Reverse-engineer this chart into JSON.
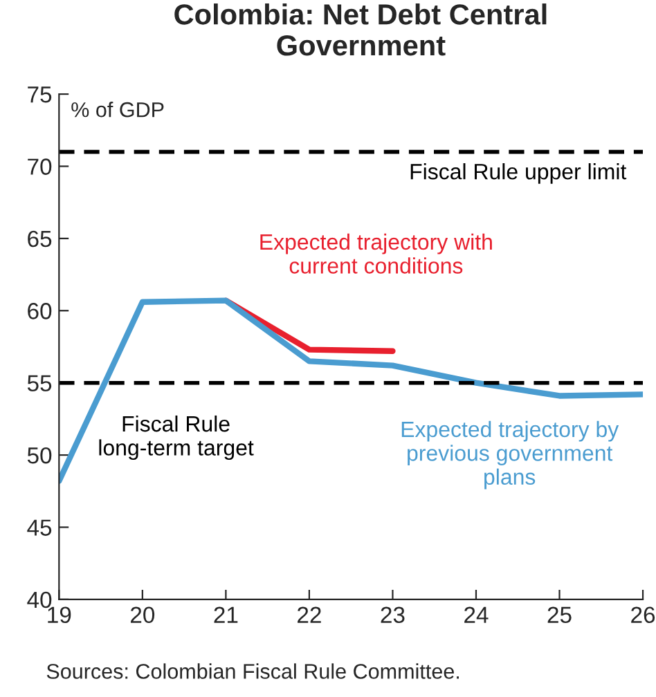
{
  "chart_data": {
    "type": "line",
    "title": "Colombia: Net Debt Central Government",
    "ylabel": "% of GDP",
    "x": [
      19,
      20,
      21,
      22,
      23,
      24,
      25,
      26
    ],
    "series": [
      {
        "name": "Expected trajectory with current conditions",
        "color": "#e8202e",
        "values": [
          null,
          null,
          60.7,
          57.3,
          57.2,
          null,
          null,
          null
        ]
      },
      {
        "name": "Expected trajectory by previous government plans",
        "color": "#4a9cd0",
        "values": [
          48.2,
          60.6,
          60.7,
          56.5,
          56.2,
          55.0,
          54.1,
          54.2
        ]
      }
    ],
    "xlim": [
      19,
      26
    ],
    "xticks": [
      19,
      20,
      21,
      22,
      23,
      24,
      25,
      26
    ],
    "ylim": [
      40,
      75
    ],
    "yticks": [
      40,
      45,
      50,
      55,
      60,
      65,
      70,
      75
    ],
    "ref_lines": [
      {
        "axis": "y",
        "value": 71,
        "label": "Fiscal Rule upper limit",
        "color": "#000000",
        "line_style": "dashed"
      },
      {
        "axis": "y",
        "value": 55,
        "label": "Fiscal Rule long-term target",
        "color": "#000000",
        "line_style": "dashed"
      }
    ],
    "grid": false,
    "annotations": [
      "Sources: Colombian Fiscal Rule Committee."
    ]
  }
}
